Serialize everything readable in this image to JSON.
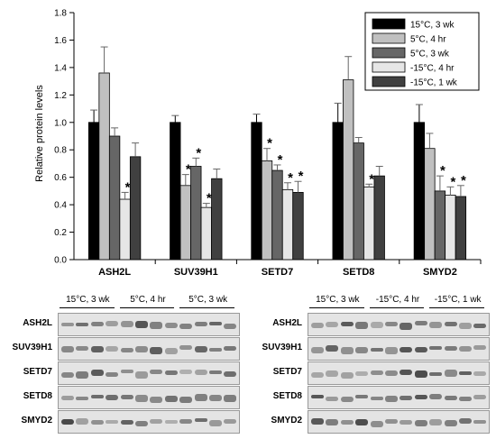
{
  "chart_data": {
    "type": "bar",
    "ylabel": "Relative protein levels",
    "ylim": [
      0,
      1.8
    ],
    "yticks": [
      "0.0",
      "0.2",
      "0.4",
      "0.6",
      "0.8",
      "1.0",
      "1.2",
      "1.4",
      "1.6",
      "1.8"
    ],
    "grid": false,
    "legend_position": "top-right",
    "categories": [
      "ASH2L",
      "SUV39H1",
      "SETD7",
      "SETD8",
      "SMYD2"
    ],
    "series": [
      {
        "name": "15°C, 3 wk",
        "color": "#000000",
        "values": [
          1.0,
          1.0,
          1.0,
          1.0,
          1.0
        ],
        "errors": [
          0.09,
          0.05,
          0.06,
          0.14,
          0.13
        ],
        "sig": [
          false,
          false,
          false,
          false,
          false
        ]
      },
      {
        "name": "5°C, 4 hr",
        "color": "#c0c0c0",
        "values": [
          1.36,
          0.54,
          0.72,
          1.31,
          0.81
        ],
        "errors": [
          0.19,
          0.08,
          0.09,
          0.17,
          0.11
        ],
        "sig": [
          false,
          true,
          true,
          false,
          false
        ]
      },
      {
        "name": "5°C, 3 wk",
        "color": "#666666",
        "values": [
          0.9,
          0.68,
          0.65,
          0.85,
          0.5
        ],
        "errors": [
          0.06,
          0.06,
          0.04,
          0.04,
          0.11
        ],
        "sig": [
          false,
          true,
          true,
          false,
          true
        ]
      },
      {
        "name": "-15°C, 4 hr",
        "color": "#e6e6e6",
        "values": [
          0.44,
          0.38,
          0.51,
          0.53,
          0.47
        ],
        "errors": [
          0.05,
          0.03,
          0.05,
          0.02,
          0.06
        ],
        "sig": [
          true,
          true,
          true,
          true,
          true
        ]
      },
      {
        "name": "-15°C, 1 wk",
        "color": "#404040",
        "values": [
          0.75,
          0.59,
          0.49,
          0.61,
          0.46
        ],
        "errors": [
          0.1,
          0.07,
          0.08,
          0.07,
          0.08
        ],
        "sig": [
          false,
          false,
          true,
          false,
          true
        ]
      }
    ],
    "significance_marker": "*"
  },
  "blots": {
    "left": {
      "groups": [
        "15°C, 3 wk",
        "5°C, 4 hr",
        "5°C, 3 wk"
      ]
    },
    "right": {
      "groups": [
        "15°C, 3 wk",
        "-15°C, 4 hr",
        "-15°C, 1 wk"
      ]
    },
    "lanes": [
      "ASH2L",
      "SUV39H1",
      "SETD7",
      "SETD8",
      "SMYD2"
    ]
  }
}
